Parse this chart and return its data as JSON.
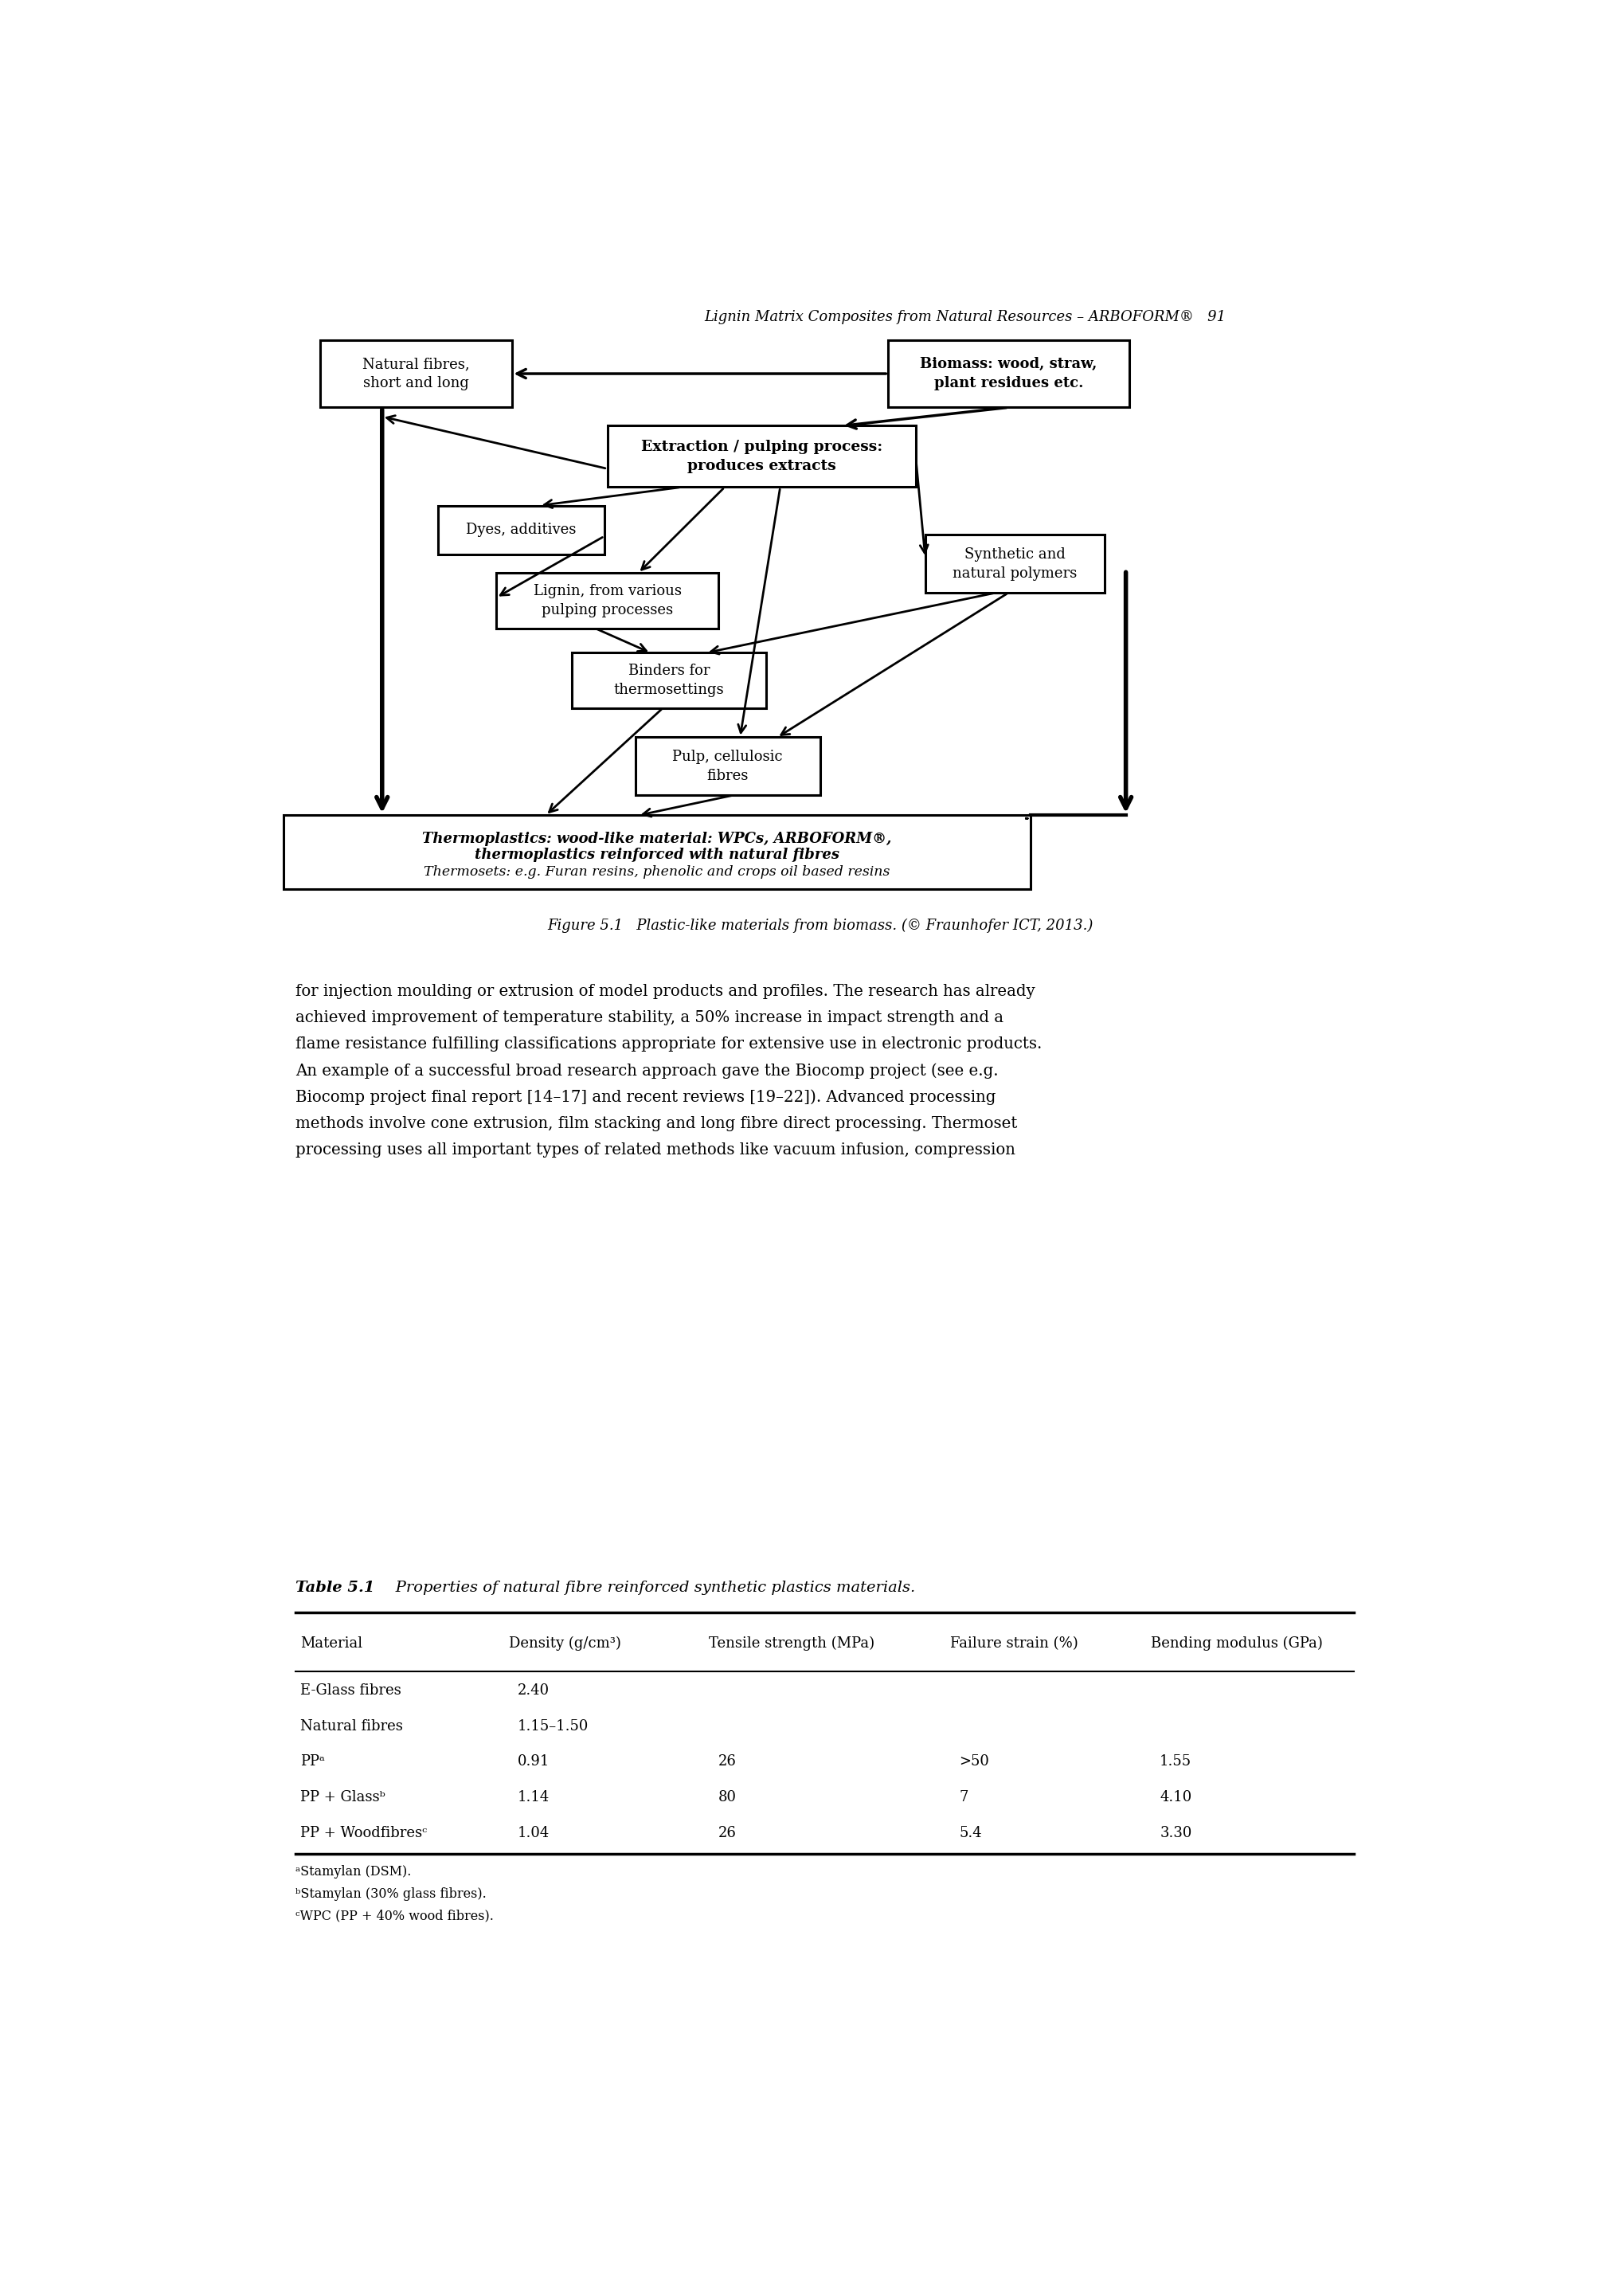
{
  "page_title": "Lignin Matrix Composites from Natural Resources – ARBOFORM®   91",
  "figure_caption": "Figure 5.1   Plastic-like materials from biomass. (© Fraunhofer ICT, 2013.)",
  "body_text": [
    "for injection moulding or extrusion of model products and profiles. The research has already",
    "achieved improvement of temperature stability, a 50% increase in impact strength and a",
    "flame resistance fulfilling classifications appropriate for extensive use in electronic products.",
    "An example of a successful broad research approach gave the Biocomp project (see e.g.",
    "Biocomp project final report [14–17] and recent reviews [19–22]). Advanced processing",
    "methods involve cone extrusion, film stacking and long fibre direct processing. Thermoset",
    "processing uses all important types of related methods like vacuum infusion, compression"
  ],
  "table_title_bold": "Table 5.1",
  "table_title_italic": "   Properties of natural fibre reinforced synthetic plastics materials.",
  "table_headers": [
    "Material",
    "Density (g/cm³)",
    "Tensile strength (MPa)",
    "Failure strain (%)",
    "Bending modulus (GPa)"
  ],
  "table_rows": [
    [
      "E-Glass fibres",
      "2.40",
      "",
      "",
      ""
    ],
    [
      "Natural fibres",
      "1.15–1.50",
      "",
      "",
      ""
    ],
    [
      "PPᵃ",
      "0.91",
      "26",
      ">50",
      "1.55"
    ],
    [
      "PP + Glassᵇ",
      "1.14",
      "80",
      "7",
      "4.10"
    ],
    [
      "PP + Woodfibresᶜ",
      "1.04",
      "26",
      "5.4",
      "3.30"
    ]
  ],
  "footnotes": [
    "ᵃStamylan (DSM).",
    "ᵇStamylan (30% glass fibres).",
    "ᶜWPC (PP + 40% wood fibres)."
  ],
  "background_color": "#ffffff",
  "text_color": "#000000"
}
